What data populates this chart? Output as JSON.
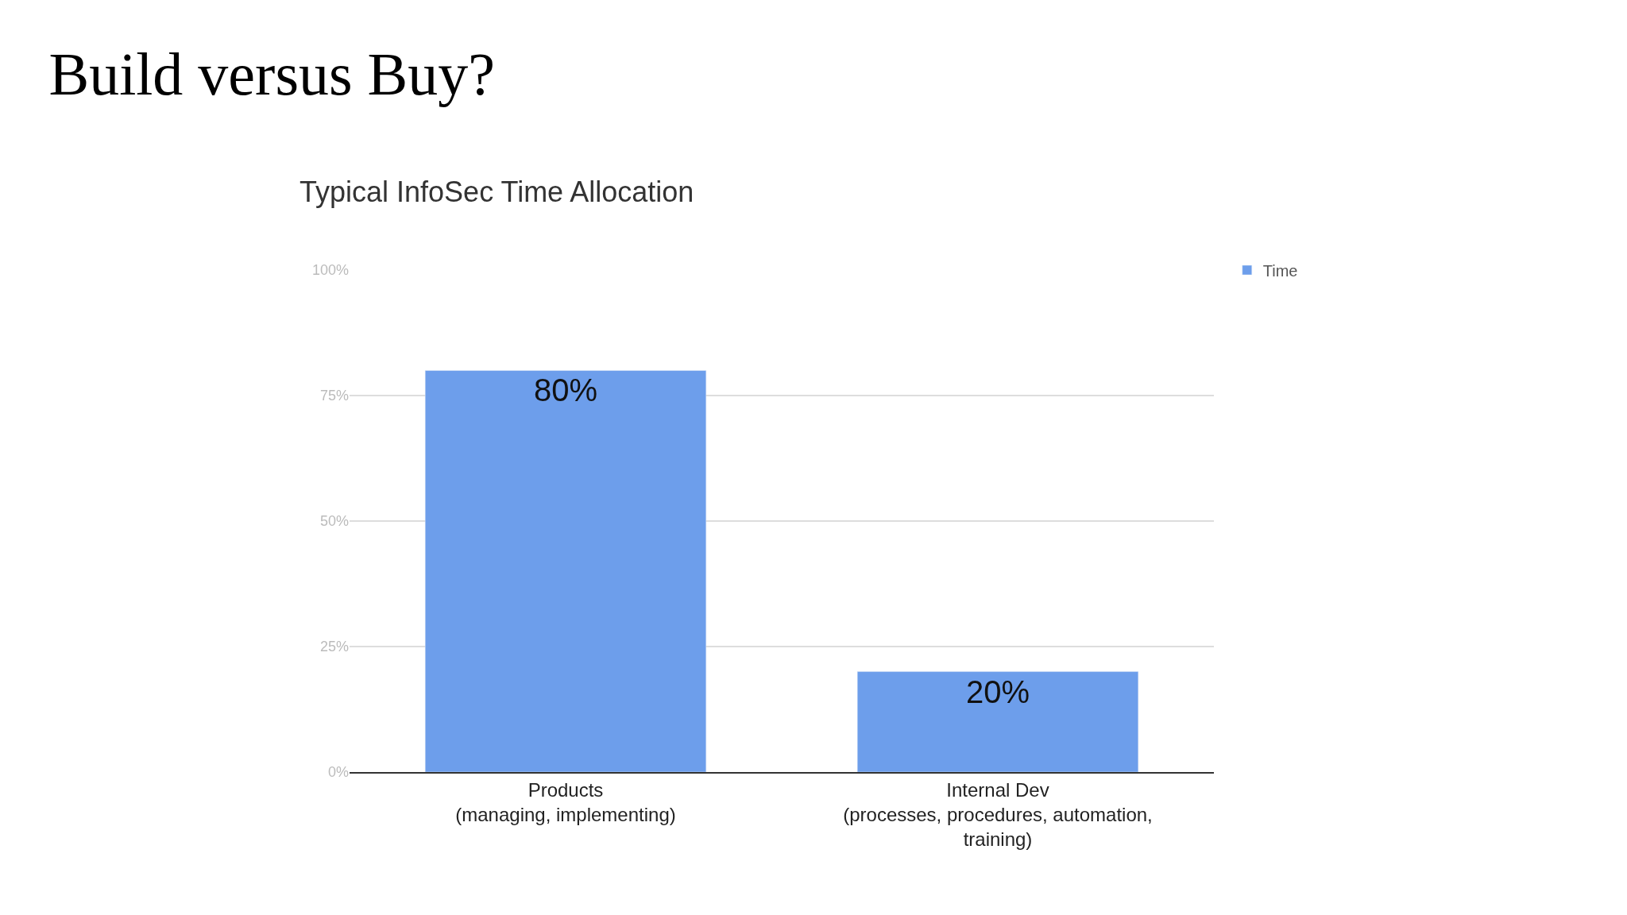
{
  "chart_data": {
    "type": "bar",
    "title": "Build versus Buy?",
    "subtitle": "Typical InfoSec Time Allocation",
    "categories": [
      "Products\n(managing, implementing)",
      "Internal Dev\n(processes, procedures, automation,\ntraining)"
    ],
    "series": [
      {
        "name": "Time",
        "color": "#6d9eeb",
        "values": [
          80,
          20
        ],
        "value_labels": [
          "80%",
          "20%"
        ]
      }
    ],
    "ylim": [
      0,
      100
    ],
    "yticks": [
      {
        "value": 0,
        "label": "0%"
      },
      {
        "value": 25,
        "label": "25%"
      },
      {
        "value": 50,
        "label": "50%"
      },
      {
        "value": 75,
        "label": "75%"
      },
      {
        "value": 100,
        "label": "100%"
      }
    ],
    "grid": "y",
    "legend": "top right"
  }
}
